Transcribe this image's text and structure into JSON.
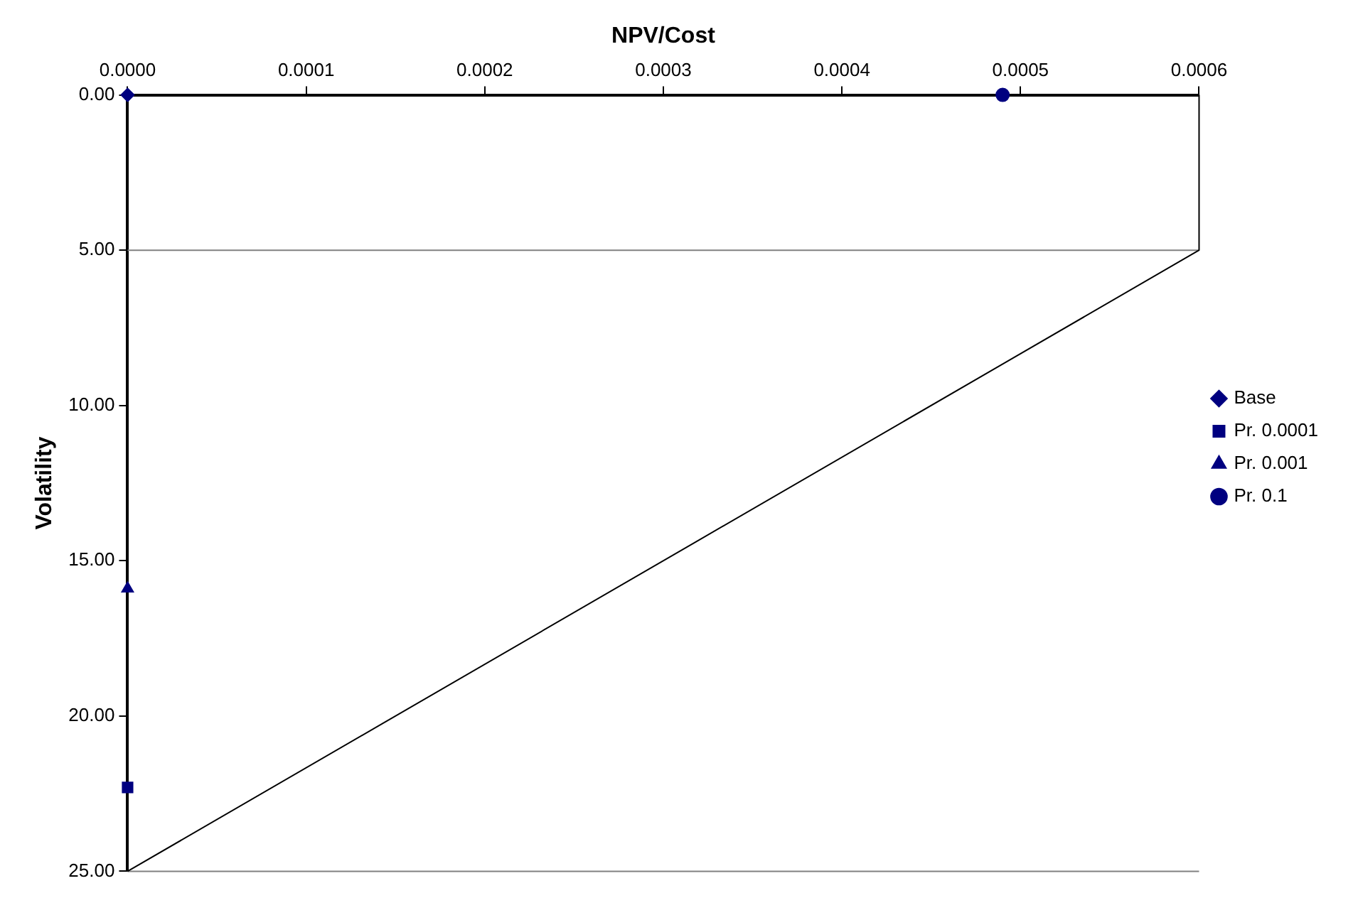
{
  "chart_data": {
    "type": "scatter",
    "xlabel": "NPV/Cost",
    "ylabel": "Volatility",
    "xlim": [
      0,
      0.0006
    ],
    "xticks": [
      {
        "value": 0,
        "label": "0.0000"
      },
      {
        "value": 0.0001,
        "label": "0.0001"
      },
      {
        "value": 0.0002,
        "label": "0.0002"
      },
      {
        "value": 0.0003,
        "label": "0.0003"
      },
      {
        "value": 0.0004,
        "label": "0.0004"
      },
      {
        "value": 0.0005,
        "label": "0.0005"
      },
      {
        "value": 0.0006,
        "label": "0.0006"
      }
    ],
    "ylim": [
      25,
      0
    ],
    "yticks": [
      {
        "value": 0,
        "label": "0.00"
      },
      {
        "value": 5,
        "label": "5.00"
      },
      {
        "value": 10,
        "label": "10.00"
      },
      {
        "value": 15,
        "label": "15.00"
      },
      {
        "value": 20,
        "label": "20.00"
      },
      {
        "value": 25,
        "label": "25.00"
      }
    ],
    "grid": false,
    "legend": "right",
    "ref_lines": [
      {
        "axis": "y",
        "value": 5,
        "color": "#808080"
      }
    ],
    "series": [
      {
        "name": "Base",
        "color": "#000080",
        "marker": "diamond",
        "x": [
          0
        ],
        "values": [
          0
        ]
      },
      {
        "name": "Pr. 0.0001",
        "color": "#000080",
        "marker": "square",
        "x": [
          0
        ],
        "values": [
          22.3
        ]
      },
      {
        "name": "Pr. 0.001",
        "color": "#000080",
        "marker": "triangle",
        "x": [
          0
        ],
        "values": [
          15.9
        ]
      },
      {
        "name": "Pr. 0.1",
        "color": "#000080",
        "marker": "circle",
        "x": [
          0.00049
        ],
        "values": [
          0
        ]
      },
      {
        "type": "line",
        "color": "#000000",
        "marker": "none",
        "x": [
          0,
          0.0006,
          0.0006
        ],
        "values": [
          25,
          5,
          0
        ]
      },
      {
        "type": "line",
        "color": "#808080",
        "marker": "none",
        "x": [
          0,
          0.0006
        ],
        "values": [
          25,
          25
        ]
      }
    ]
  }
}
